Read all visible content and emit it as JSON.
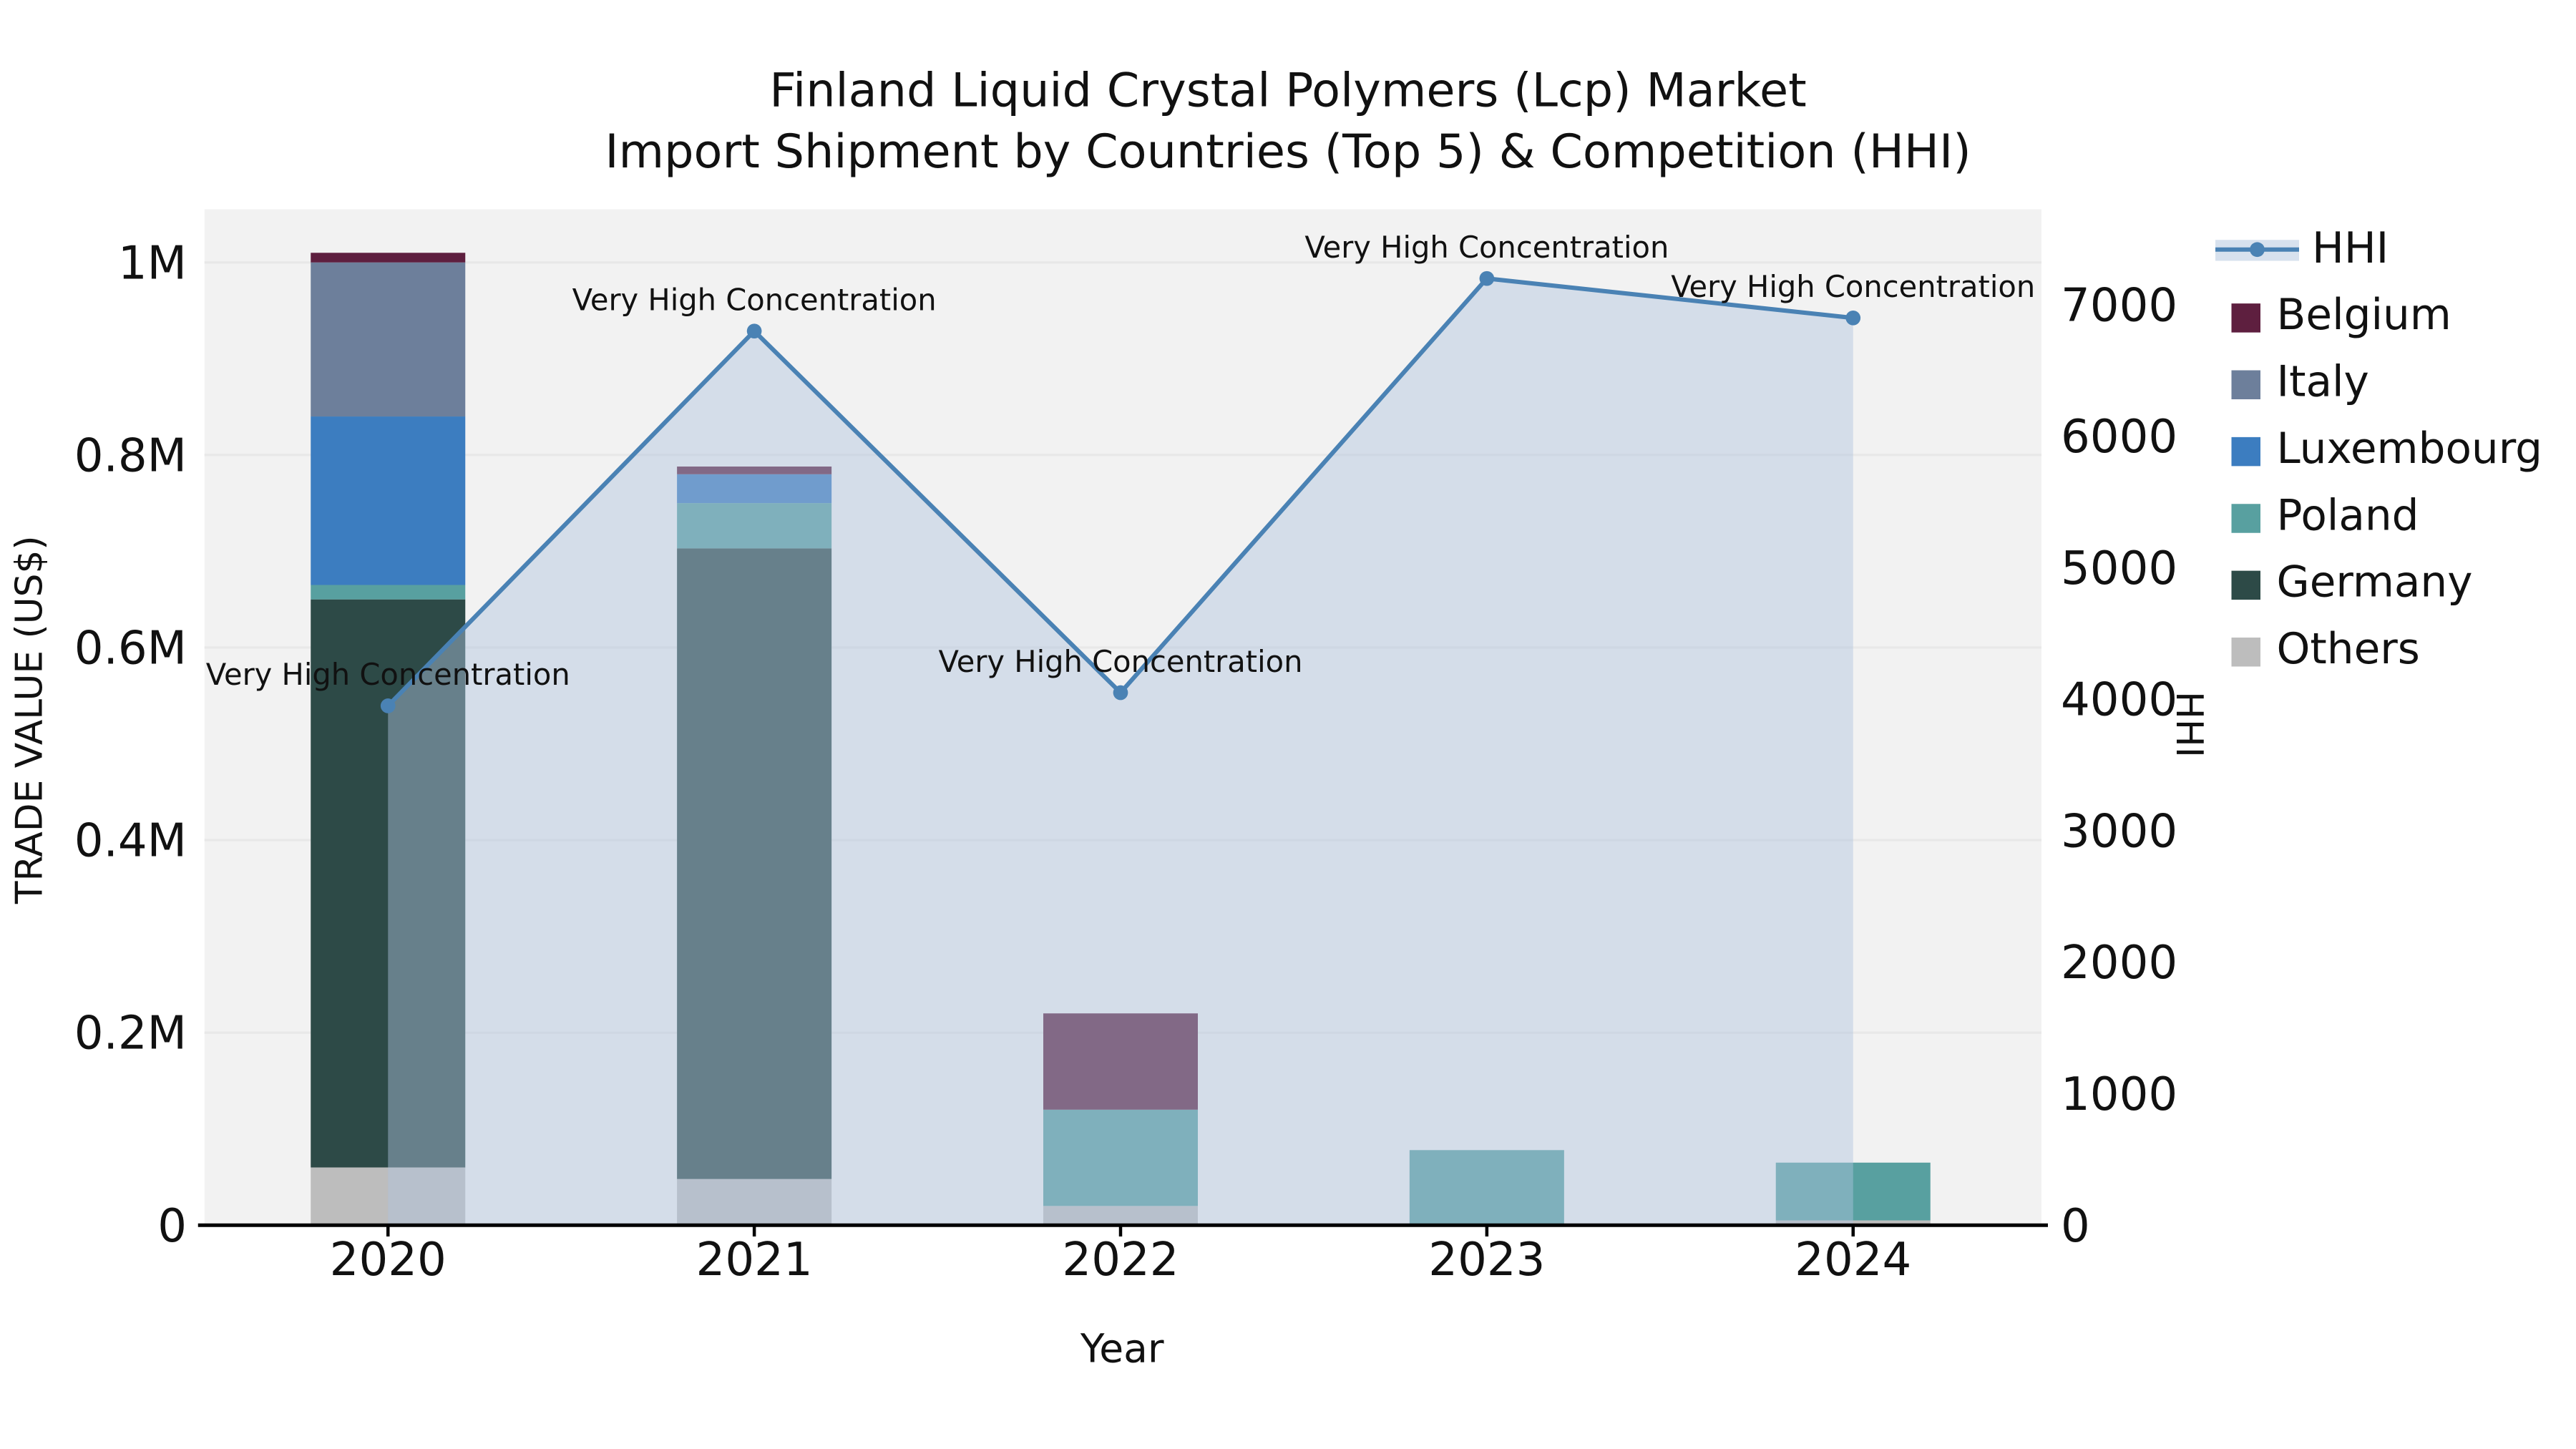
{
  "figure": {
    "background": "#ffffff",
    "plot_background": "#f2f2f2",
    "gridline_color": "#e8e8e8",
    "axis_line_color": "#000000"
  },
  "chart_data": {
    "type": "combo_stacked_bar_line",
    "title": "Finland Liquid Crystal Polymers (Lcp) Market",
    "subtitle": "Import Shipment by Countries (Top 5) & Competition (HHI)",
    "xlabel": "Year",
    "ylabel_left": "TRADE VALUE (US$)",
    "ylabel_right": "HHI",
    "categories": [
      "2020",
      "2021",
      "2022",
      "2023",
      "2024"
    ],
    "left_axis": {
      "unit": "US$",
      "ticks": [
        {
          "value": 0,
          "label": "0"
        },
        {
          "value": 200000,
          "label": "0.2M"
        },
        {
          "value": 400000,
          "label": "0.4M"
        },
        {
          "value": 600000,
          "label": "0.6M"
        },
        {
          "value": 800000,
          "label": "0.8M"
        },
        {
          "value": 1000000,
          "label": "1M"
        }
      ]
    },
    "right_axis": {
      "unit": "HHI",
      "ticks": [
        {
          "value": 0,
          "label": "0"
        },
        {
          "value": 1000,
          "label": "1000"
        },
        {
          "value": 2000,
          "label": "2000"
        },
        {
          "value": 3000,
          "label": "3000"
        },
        {
          "value": 4000,
          "label": "4000"
        },
        {
          "value": 5000,
          "label": "5000"
        },
        {
          "value": 6000,
          "label": "6000"
        },
        {
          "value": 7000,
          "label": "7000"
        }
      ]
    },
    "bar_series": [
      {
        "name": "Belgium",
        "color": "#5e1f3f",
        "values": [
          10000,
          8000,
          100000,
          0,
          0
        ]
      },
      {
        "name": "Italy",
        "color": "#6d7f9b",
        "values": [
          160000,
          0,
          0,
          0,
          0
        ]
      },
      {
        "name": "Luxembourg",
        "color": "#3c7dc0",
        "values": [
          175000,
          30000,
          0,
          0,
          0
        ]
      },
      {
        "name": "Poland",
        "color": "#58a0a0",
        "values": [
          15000,
          47000,
          100000,
          78000,
          60000
        ]
      },
      {
        "name": "Germany",
        "color": "#2d4a47",
        "values": [
          590000,
          655000,
          0,
          0,
          0
        ]
      },
      {
        "name": "Others",
        "color": "#bdbdbd",
        "values": [
          60000,
          48000,
          20000,
          0,
          5000
        ]
      }
    ],
    "bar_totals": [
      1010000,
      788000,
      220000,
      78000,
      65000
    ],
    "line_series": {
      "name": "HHI",
      "color": "#4a82b4",
      "fill_color": "#b0c4de",
      "fill_opacity": 0.45,
      "values": [
        3950,
        6800,
        4050,
        7200,
        6900
      ],
      "point_annotations": [
        "Very High Concentration",
        "Very High Concentration",
        "Very High Concentration",
        "Very High Concentration",
        "Very High Concentration"
      ]
    },
    "legend": {
      "position": "right",
      "entries": [
        "HHI",
        "Belgium",
        "Italy",
        "Luxembourg",
        "Poland",
        "Germany",
        "Others"
      ]
    }
  }
}
